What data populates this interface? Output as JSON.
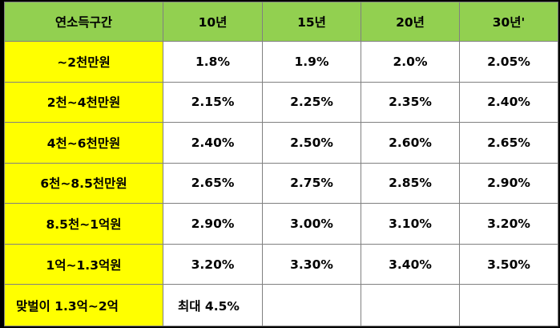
{
  "table": {
    "headers": [
      "연소득구간",
      "10년",
      "15년",
      "20년",
      "30년'"
    ],
    "rows": [
      {
        "label": "~2천만원",
        "values": [
          "1.8%",
          "1.9%",
          "2.0%",
          "2.05%"
        ]
      },
      {
        "label": "2천~4천만원",
        "values": [
          "2.15%",
          "2.25%",
          "2.35%",
          "2.40%"
        ]
      },
      {
        "label": "4천~6천만원",
        "values": [
          "2.40%",
          "2.50%",
          "2.60%",
          "2.65%"
        ]
      },
      {
        "label": "6천~8.5천만원",
        "values": [
          "2.65%",
          "2.75%",
          "2.85%",
          "2.90%"
        ]
      },
      {
        "label": "8.5천~1억원",
        "values": [
          "2.90%",
          "3.00%",
          "3.10%",
          "3.20%"
        ]
      },
      {
        "label": "1억~1.3억원",
        "values": [
          "3.20%",
          "3.30%",
          "3.40%",
          "3.50%"
        ]
      },
      {
        "label": "맞벌이 1.3억~2억",
        "values": [
          "최대 4.5%",
          "",
          "",
          ""
        ]
      }
    ]
  },
  "colors": {
    "header_bg": "#92D050",
    "label_bg": "#FFFF00",
    "cell_bg": "#FFFFFF",
    "frame": "#000000"
  }
}
